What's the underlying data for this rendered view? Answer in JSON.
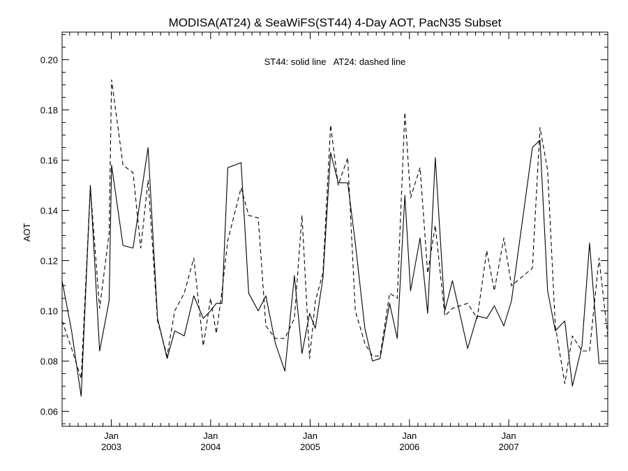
{
  "chart_data": {
    "type": "line",
    "title": "MODISA(AT24) & SeaWiFS(ST44) 4-Day AOT, PacN35 Subset",
    "ylabel": "AOT",
    "xlabel": "",
    "annotation": "ST44: solid line   AT24: dashed line",
    "ylim": [
      0.054,
      0.211
    ],
    "xlim": [
      "2002-07-04",
      "2007-12-31"
    ],
    "y_ticks": [
      0.06,
      0.08,
      0.1,
      0.12,
      0.14,
      0.16,
      0.18,
      0.2
    ],
    "y_tick_labels": [
      "0.06",
      "0.08",
      "0.10",
      "0.12",
      "0.14",
      "0.16",
      "0.18",
      "0.20"
    ],
    "x_ticks": [
      {
        "date": "2003-01-01",
        "month": "Jan",
        "year": "2003"
      },
      {
        "date": "2004-01-01",
        "month": "Jan",
        "year": "2004"
      },
      {
        "date": "2005-01-01",
        "month": "Jan",
        "year": "2005"
      },
      {
        "date": "2006-01-01",
        "month": "Jan",
        "year": "2006"
      },
      {
        "date": "2007-01-01",
        "month": "Jan",
        "year": "2007"
      }
    ],
    "grid": false,
    "series": [
      {
        "style": "solid",
        "x": [
          "2002-07-04",
          "2002-08-08",
          "2002-09-12",
          "2002-10-16",
          "2002-11-19",
          "2002-12-24",
          "2003-01-02",
          "2003-02-13",
          "2003-03-22",
          "2003-05-16",
          "2003-06-20",
          "2003-07-25",
          "2003-08-22",
          "2003-09-26",
          "2003-10-31",
          "2003-12-05",
          "2004-01-01",
          "2004-01-22",
          "2004-02-12",
          "2004-03-04",
          "2004-04-22",
          "2004-05-20",
          "2004-06-24",
          "2004-07-22",
          "2004-08-26",
          "2004-09-30",
          "2004-11-04",
          "2004-12-02",
          "2004-12-30",
          "2005-01-20",
          "2005-02-17",
          "2005-03-17",
          "2005-04-14",
          "2005-05-19",
          "2005-06-16",
          "2005-07-21",
          "2005-08-18",
          "2005-09-15",
          "2005-10-20",
          "2005-11-17",
          "2005-12-15",
          "2006-01-05",
          "2006-02-09",
          "2006-03-09",
          "2006-04-06",
          "2006-05-11",
          "2006-06-08",
          "2006-08-03",
          "2006-09-07",
          "2006-10-12",
          "2006-11-09",
          "2006-12-14",
          "2007-01-11",
          "2007-03-29",
          "2007-04-26",
          "2007-05-24",
          "2007-06-21",
          "2007-07-26",
          "2007-08-23",
          "2007-09-27",
          "2007-10-25",
          "2007-11-29",
          "2007-12-31"
        ],
        "y": [
          0.112,
          0.092,
          0.066,
          0.15,
          0.084,
          0.104,
          0.158,
          0.126,
          0.125,
          0.165,
          0.097,
          0.081,
          0.092,
          0.09,
          0.106,
          0.097,
          0.1,
          0.103,
          0.103,
          0.157,
          0.159,
          0.107,
          0.1,
          0.106,
          0.087,
          0.076,
          0.114,
          0.083,
          0.099,
          0.093,
          0.113,
          0.163,
          0.151,
          0.151,
          0.127,
          0.093,
          0.08,
          0.081,
          0.103,
          0.089,
          0.146,
          0.108,
          0.129,
          0.099,
          0.161,
          0.1,
          0.112,
          0.085,
          0.098,
          0.097,
          0.102,
          0.094,
          0.104,
          0.165,
          0.168,
          0.108,
          0.092,
          0.096,
          0.07,
          0.086,
          0.127,
          0.079,
          0.079
        ]
      },
      {
        "style": "dashed",
        "x": [
          "2002-07-04",
          "2002-08-08",
          "2002-09-12",
          "2002-10-16",
          "2002-11-19",
          "2002-12-24",
          "2003-01-02",
          "2003-02-13",
          "2003-03-22",
          "2003-04-19",
          "2003-05-16",
          "2003-06-20",
          "2003-07-25",
          "2003-08-22",
          "2003-09-26",
          "2003-10-31",
          "2003-12-05",
          "2004-01-01",
          "2004-01-22",
          "2004-02-12",
          "2004-03-04",
          "2004-04-22",
          "2004-05-20",
          "2004-06-24",
          "2004-07-22",
          "2004-08-26",
          "2004-09-30",
          "2004-11-04",
          "2004-12-02",
          "2004-12-30",
          "2005-01-20",
          "2005-02-17",
          "2005-03-17",
          "2005-04-14",
          "2005-05-19",
          "2005-06-16",
          "2005-07-21",
          "2005-08-18",
          "2005-09-15",
          "2005-10-20",
          "2005-11-17",
          "2005-12-15",
          "2006-01-05",
          "2006-02-09",
          "2006-03-09",
          "2006-04-06",
          "2006-05-11",
          "2006-06-08",
          "2006-08-03",
          "2006-09-07",
          "2006-10-12",
          "2006-11-09",
          "2006-12-14",
          "2007-01-11",
          "2007-03-29",
          "2007-04-26",
          "2007-05-24",
          "2007-06-21",
          "2007-07-26",
          "2007-08-23",
          "2007-09-27",
          "2007-10-25",
          "2007-11-29",
          "2007-12-31"
        ],
        "y": [
          0.096,
          0.085,
          0.073,
          0.149,
          0.101,
          0.131,
          0.192,
          0.158,
          0.155,
          0.125,
          0.152,
          0.096,
          0.082,
          0.1,
          0.107,
          0.121,
          0.086,
          0.105,
          0.091,
          0.108,
          0.128,
          0.149,
          0.138,
          0.137,
          0.094,
          0.089,
          0.089,
          0.097,
          0.138,
          0.081,
          0.104,
          0.115,
          0.174,
          0.15,
          0.161,
          0.1,
          0.087,
          0.082,
          0.082,
          0.107,
          0.105,
          0.179,
          0.145,
          0.157,
          0.115,
          0.134,
          0.098,
          0.101,
          0.103,
          0.097,
          0.124,
          0.108,
          0.129,
          0.11,
          0.117,
          0.173,
          0.156,
          0.094,
          0.071,
          0.09,
          0.084,
          0.084,
          0.121,
          0.09
        ]
      }
    ]
  }
}
